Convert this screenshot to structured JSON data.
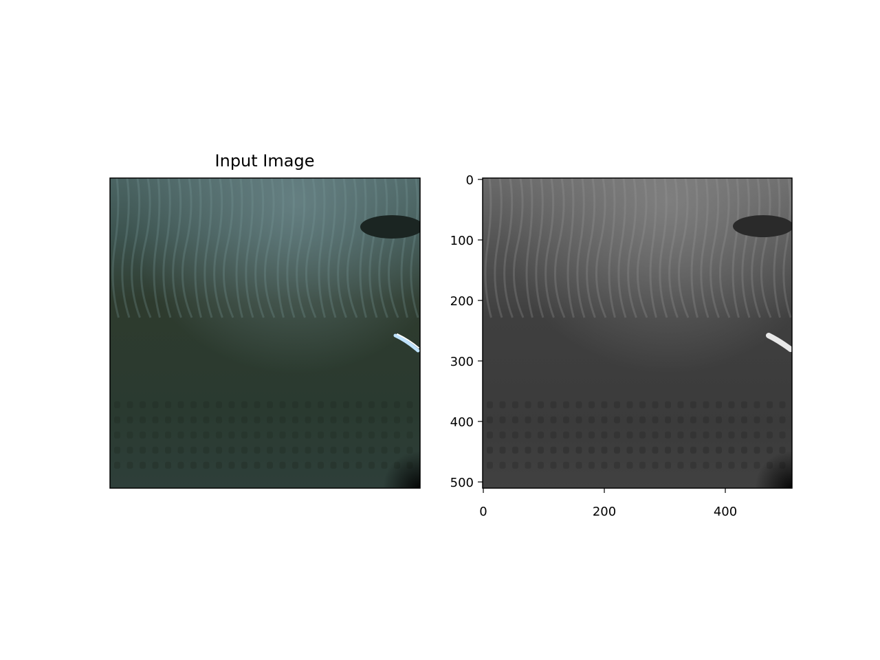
{
  "figure": {
    "panels": [
      {
        "title": "Input Image",
        "axes_visible": false
      },
      {
        "title": "",
        "axes_visible": true,
        "x_ticks": [
          "0",
          "200",
          "400"
        ],
        "y_ticks": [
          "0",
          "100",
          "200",
          "300",
          "400",
          "500"
        ],
        "x_range": [
          0,
          512
        ],
        "y_range": [
          0,
          512
        ]
      }
    ],
    "colors": {
      "background": "#ffffff",
      "frame": "#000000",
      "input_tint": "#28362c",
      "output_tint": "#3c3c3c"
    }
  }
}
